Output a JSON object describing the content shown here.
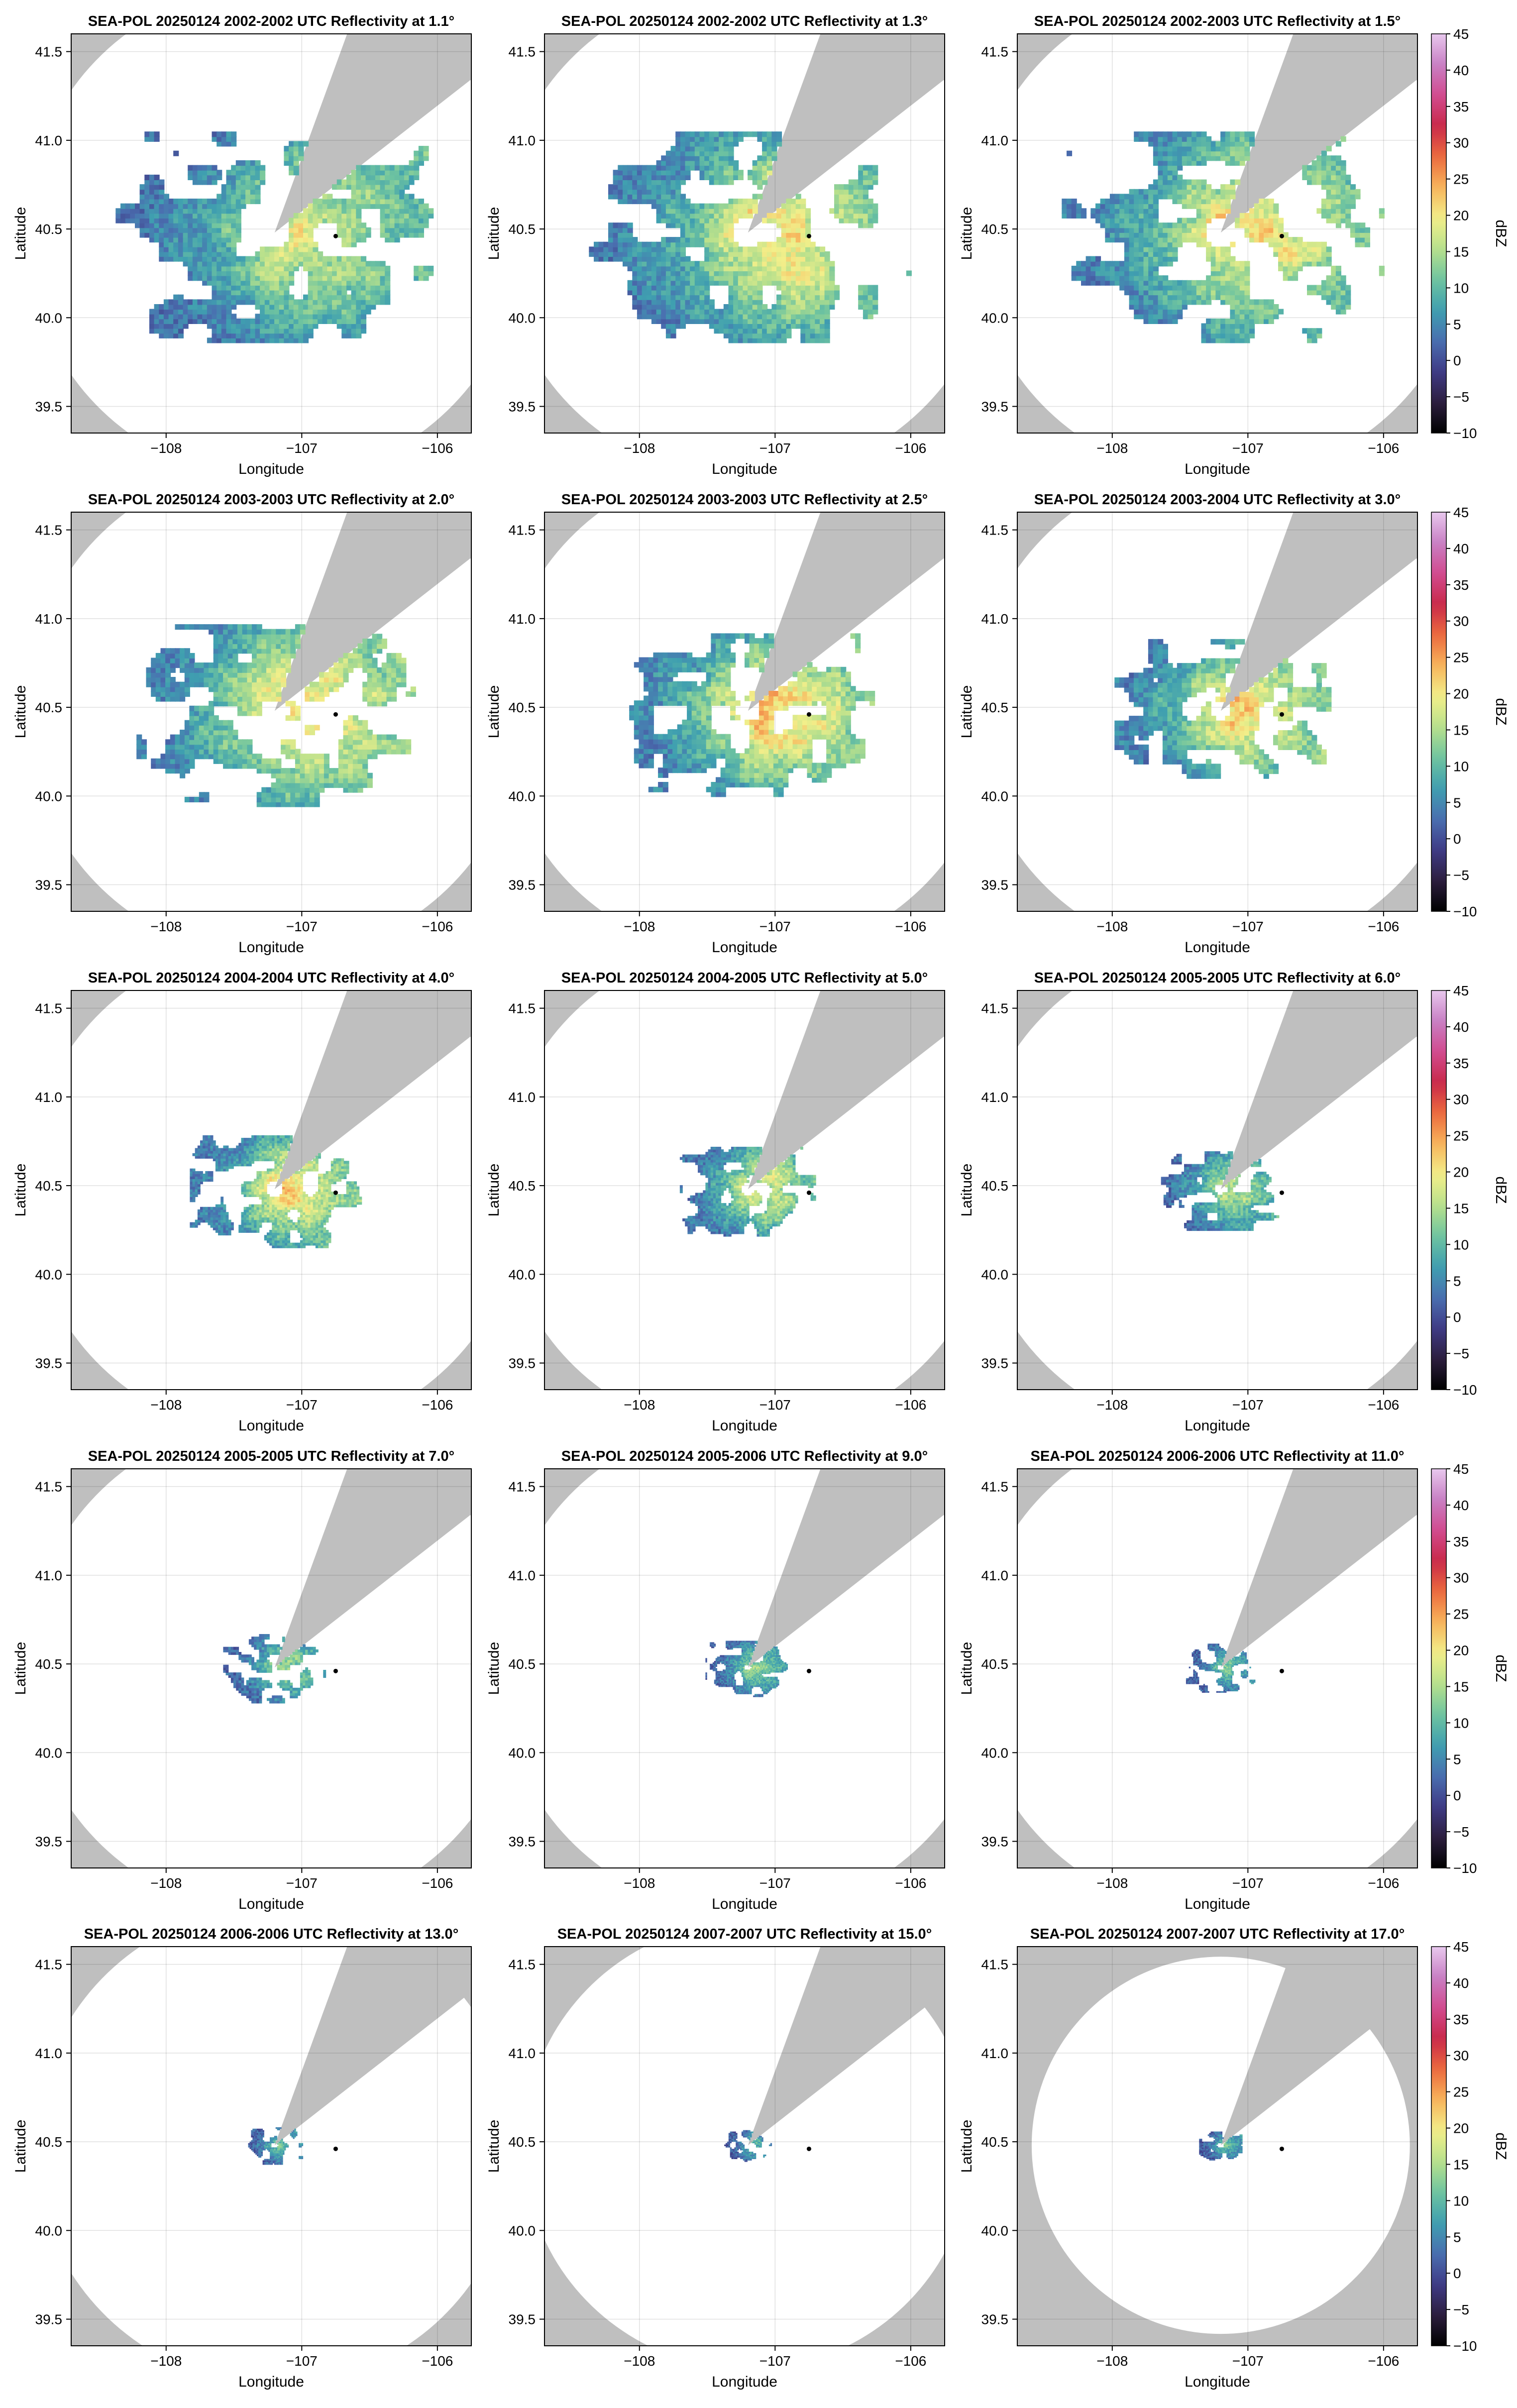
{
  "chart_data": {
    "type": "radar_ppi_grid",
    "rows": 5,
    "cols": 3,
    "xlabel": "Longitude",
    "ylabel": "Latitude",
    "xlim": [
      -108.7,
      -105.75
    ],
    "ylim": [
      39.35,
      41.6
    ],
    "xticks": [
      -108,
      -107,
      -106
    ],
    "xtick_labels": [
      "−108",
      "−107",
      "−106"
    ],
    "yticks": [
      39.5,
      40.0,
      40.5,
      41.0,
      41.5
    ],
    "ytick_labels": [
      "39.5",
      "40.0",
      "40.5",
      "41.0",
      "41.5"
    ],
    "radar_center": {
      "lon": -107.2,
      "lat": 40.48
    },
    "marker_point": {
      "lon": -106.75,
      "lat": 40.46
    },
    "blocked_sector_deg": [
      20,
      52
    ],
    "colorbar": {
      "label": "dBZ",
      "range": [
        -10,
        45
      ],
      "ticks": [
        -10,
        -5,
        0,
        5,
        10,
        15,
        20,
        25,
        30,
        35,
        40,
        45
      ],
      "tick_labels": [
        "−10",
        "−5",
        "0",
        "5",
        "10",
        "15",
        "20",
        "25",
        "30",
        "35",
        "40",
        "45"
      ],
      "colors": [
        "#000000",
        "#2c1e3f",
        "#3f3b86",
        "#4a6fb0",
        "#3f9fb0",
        "#6fc4a0",
        "#b8e08c",
        "#f2ef8a",
        "#f7b45c",
        "#ec6a3e",
        "#c8294a",
        "#d14b8f",
        "#c880c4",
        "#e8c8ee"
      ]
    },
    "panels": [
      {
        "title": "SEA-POL 20250124 2002-2002 UTC Reflectivity at 1.1°",
        "elevation_deg": 1.1,
        "range_km": 155,
        "echo_extent_km": 75,
        "peak_dbz": 24
      },
      {
        "title": "SEA-POL 20250124 2002-2002 UTC Reflectivity at 1.3°",
        "elevation_deg": 1.3,
        "range_km": 155,
        "echo_extent_km": 75,
        "peak_dbz": 27
      },
      {
        "title": "SEA-POL 20250124 2002-2003 UTC Reflectivity at 1.5°",
        "elevation_deg": 1.5,
        "range_km": 155,
        "echo_extent_km": 75,
        "peak_dbz": 28
      },
      {
        "title": "SEA-POL 20250124 2003-2003 UTC Reflectivity at 2.0°",
        "elevation_deg": 2.0,
        "range_km": 155,
        "echo_extent_km": 65,
        "peak_dbz": 30
      },
      {
        "title": "SEA-POL 20250124 2003-2003 UTC Reflectivity at 2.5°",
        "elevation_deg": 2.5,
        "range_km": 155,
        "echo_extent_km": 58,
        "peak_dbz": 30
      },
      {
        "title": "SEA-POL 20250124 2003-2004 UTC Reflectivity at 3.0°",
        "elevation_deg": 3.0,
        "range_km": 155,
        "echo_extent_km": 52,
        "peak_dbz": 29
      },
      {
        "title": "SEA-POL 20250124 2004-2004 UTC Reflectivity at 4.0°",
        "elevation_deg": 4.0,
        "range_km": 155,
        "echo_extent_km": 40,
        "peak_dbz": 28
      },
      {
        "title": "SEA-POL 20250124 2004-2005 UTC Reflectivity at 5.0°",
        "elevation_deg": 5.0,
        "range_km": 155,
        "echo_extent_km": 32,
        "peak_dbz": 25
      },
      {
        "title": "SEA-POL 20250124 2005-2005 UTC Reflectivity at 6.0°",
        "elevation_deg": 6.0,
        "range_km": 155,
        "echo_extent_km": 28,
        "peak_dbz": 22
      },
      {
        "title": "SEA-POL 20250124 2005-2005 UTC Reflectivity at 7.0°",
        "elevation_deg": 7.0,
        "range_km": 155,
        "echo_extent_km": 24,
        "peak_dbz": 20
      },
      {
        "title": "SEA-POL 20250124 2005-2006 UTC Reflectivity at 9.0°",
        "elevation_deg": 9.0,
        "range_km": 155,
        "echo_extent_km": 20,
        "peak_dbz": 18
      },
      {
        "title": "SEA-POL 20250124 2006-2006 UTC Reflectivity at 11.0°",
        "elevation_deg": 11.0,
        "range_km": 155,
        "echo_extent_km": 17,
        "peak_dbz": 16
      },
      {
        "title": "SEA-POL 20250124 2006-2006 UTC Reflectivity at 13.0°",
        "elevation_deg": 13.0,
        "range_km": 150,
        "echo_extent_km": 13,
        "peak_dbz": 16
      },
      {
        "title": "SEA-POL 20250124 2007-2007 UTC Reflectivity at 15.0°",
        "elevation_deg": 15.0,
        "range_km": 140,
        "echo_extent_km": 11,
        "peak_dbz": 15
      },
      {
        "title": "SEA-POL 20250124 2007-2007 UTC Reflectivity at 17.0°",
        "elevation_deg": 17.0,
        "range_km": 118,
        "echo_extent_km": 10,
        "peak_dbz": 15
      }
    ]
  }
}
